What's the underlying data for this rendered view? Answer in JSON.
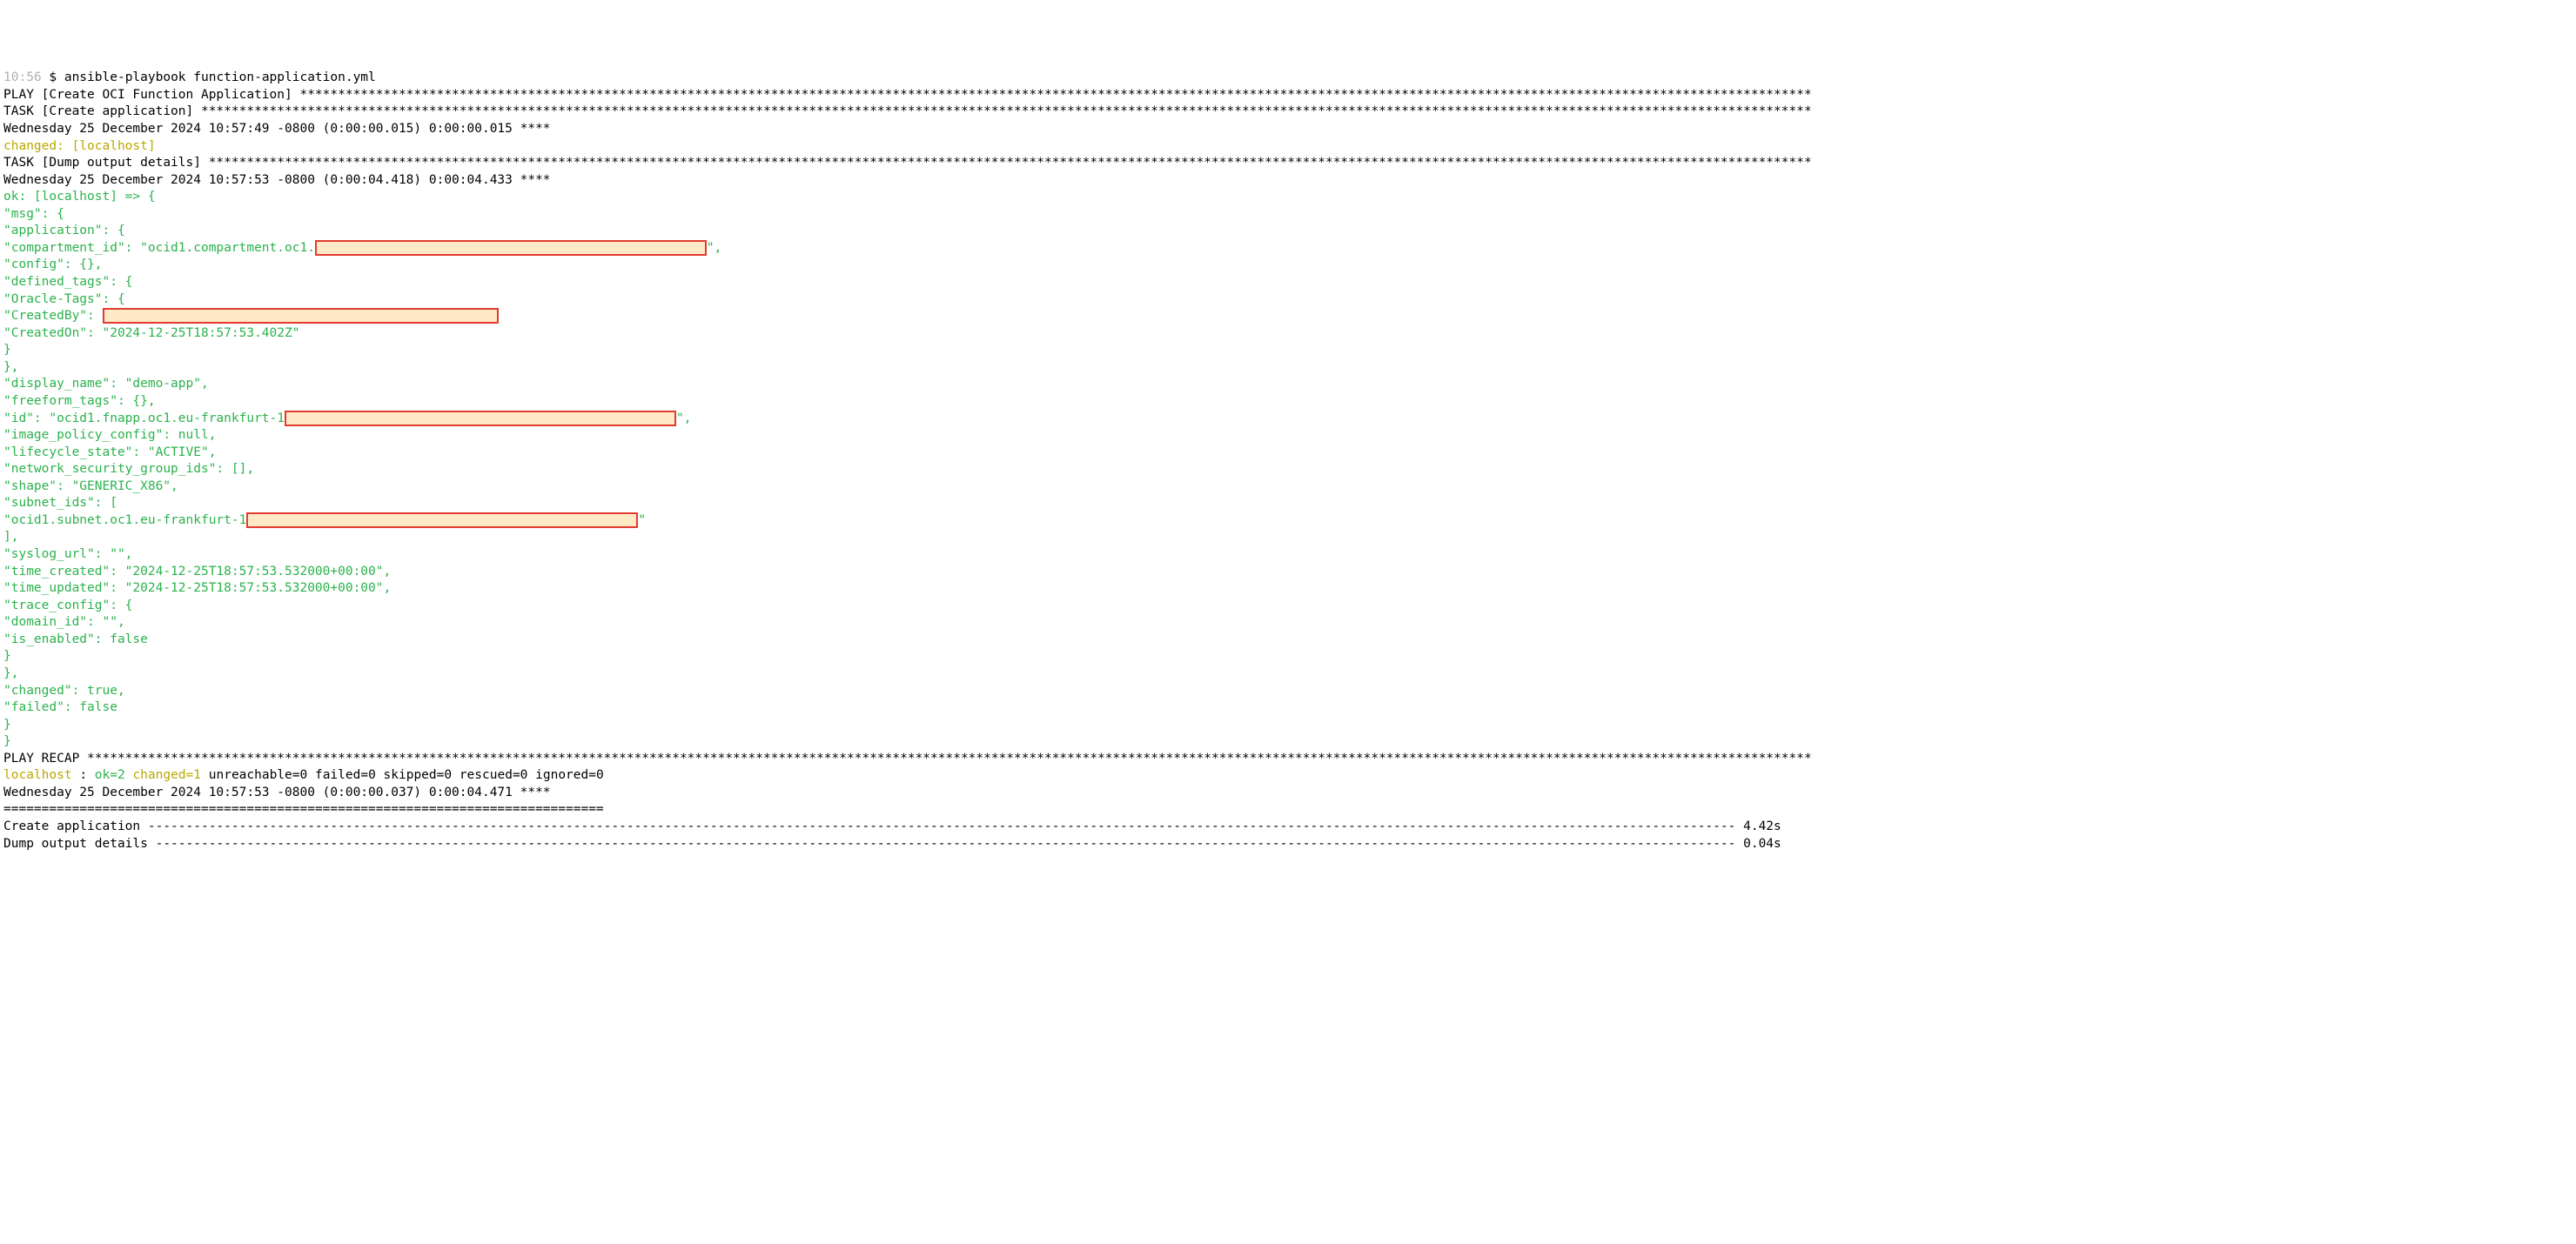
{
  "prompt": {
    "time": "10:56",
    "symbol": "$",
    "command": "ansible-playbook function-application.yml"
  },
  "play_header": {
    "prefix": "PLAY [",
    "name": "Create OCI Function Application",
    "suffix": "] "
  },
  "task1": {
    "prefix": "TASK [",
    "name": "Create application",
    "suffix": "] ",
    "timestamp_line": "Wednesday 25 December 2024  10:57:49 -0800 (0:00:00.015)       0:00:00.015 ****",
    "status": "changed: [localhost]"
  },
  "task2": {
    "prefix": "TASK [",
    "name": "Dump output details",
    "suffix": "] ",
    "timestamp_line": "Wednesday 25 December 2024  10:57:53 -0800 (0:00:04.418)       0:00:04.433 ****",
    "status": "ok: [localhost] => {"
  },
  "msg": {
    "open": "    \"msg\": {",
    "app_open": "        \"application\": {",
    "compartment_prefix": "            \"compartment_id\": \"ocid1.compartment.oc1.",
    "compartment_suffix": "\",",
    "config": "            \"config\": {},",
    "deftags_open": "            \"defined_tags\": {",
    "oracle_open": "                \"Oracle-Tags\": {",
    "createdby_prefix": "                    \"CreatedBy\": ",
    "createdon": "                    \"CreatedOn\": \"2024-12-25T18:57:53.402Z\"",
    "oracle_close": "                }",
    "deftags_close": "            },",
    "display_name": "            \"display_name\": \"demo-app\",",
    "freeform_tags": "            \"freeform_tags\": {},",
    "id_prefix": "            \"id\": \"ocid1.fnapp.oc1.eu-frankfurt-1",
    "id_suffix": "\",",
    "image_policy": "            \"image_policy_config\": null,",
    "lifecycle": "            \"lifecycle_state\": \"ACTIVE\",",
    "nsg": "            \"network_security_group_ids\": [],",
    "shape": "            \"shape\": \"GENERIC_X86\",",
    "subnet_open": "            \"subnet_ids\": [",
    "subnet_prefix": "                \"ocid1.subnet.oc1.eu-frankfurt-1",
    "subnet_suffix": "\"",
    "subnet_close": "            ],",
    "syslog": "            \"syslog_url\": \"\",",
    "tcreated": "            \"time_created\": \"2024-12-25T18:57:53.532000+00:00\",",
    "tupdated": "            \"time_updated\": \"2024-12-25T18:57:53.532000+00:00\",",
    "trace_open": "            \"trace_config\": {",
    "trace_domain": "                \"domain_id\": \"\",",
    "trace_enabled": "                \"is_enabled\": false",
    "trace_close": "            }",
    "app_close": "        },",
    "changed": "        \"changed\": true,",
    "failed": "        \"failed\": false",
    "msg_close": "    }",
    "root_close": "}"
  },
  "recap": {
    "header_prefix": "PLAY RECAP ",
    "host": "localhost",
    "colon": ": ",
    "ok": "ok=2   ",
    "changed": "changed=1   ",
    "rest": "unreachable=0    failed=0    skipped=0    rescued=0    ignored=0"
  },
  "footer": {
    "ts": "Wednesday 25 December 2024  10:57:53 -0800 (0:00:00.037)       0:00:04.471 ****",
    "sep": "===============================================================================",
    "row1_name": "Create application ",
    "row1_time": " 4.42s",
    "row2_name": "Dump output details ",
    "row2_time": " 0.04s"
  },
  "style": {
    "redact_widths": {
      "compartment": 450,
      "createdby": 455,
      "id": 450,
      "subnet": 450
    }
  }
}
